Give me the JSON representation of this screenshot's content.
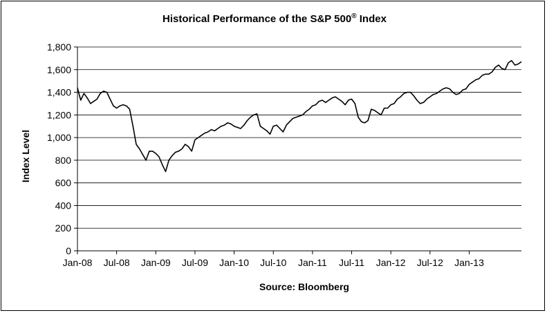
{
  "chart_data": {
    "type": "line",
    "title": "Historical Performance of the S&P 500",
    "title_mark": "®",
    "title_suffix": " Index",
    "xlabel": "Source: Bloomberg",
    "ylabel": "Index Level",
    "ylim": [
      0,
      1800
    ],
    "yticks": [
      0,
      200,
      400,
      600,
      800,
      1000,
      1200,
      1400,
      1600,
      1800
    ],
    "ytick_labels": [
      "0",
      "200",
      "400",
      "600",
      "800",
      "1,000",
      "1,200",
      "1,400",
      "1,600",
      "1,800"
    ],
    "xlim": [
      "2008-01",
      "2013-09"
    ],
    "xtick_labels": [
      "Jan-08",
      "Jul-08",
      "Jan-09",
      "Jul-09",
      "Jan-10",
      "Jul-10",
      "Jan-11",
      "Jul-11",
      "Jan-12",
      "Jul-12",
      "Jan-13"
    ],
    "grid": "horizontal",
    "legend": "none",
    "line_color": "#000000",
    "series": [
      {
        "x": [
          "2008-01",
          "2008-01",
          "2008-02",
          "2008-02",
          "2008-03",
          "2008-03",
          "2008-04",
          "2008-04",
          "2008-05",
          "2008-05",
          "2008-06",
          "2008-06",
          "2008-07",
          "2008-07",
          "2008-08",
          "2008-08",
          "2008-09",
          "2008-09",
          "2008-10",
          "2008-10",
          "2008-11",
          "2008-11",
          "2008-12",
          "2008-12",
          "2009-01",
          "2009-01",
          "2009-02",
          "2009-02",
          "2009-03",
          "2009-03",
          "2009-04",
          "2009-04",
          "2009-05",
          "2009-05",
          "2009-06",
          "2009-06",
          "2009-07",
          "2009-07",
          "2009-08",
          "2009-08",
          "2009-09",
          "2009-09",
          "2009-10",
          "2009-10",
          "2009-11",
          "2009-11",
          "2009-12",
          "2009-12",
          "2010-01",
          "2010-01",
          "2010-02",
          "2010-02",
          "2010-03",
          "2010-03",
          "2010-04",
          "2010-04",
          "2010-05",
          "2010-05",
          "2010-06",
          "2010-06",
          "2010-07",
          "2010-07",
          "2010-08",
          "2010-08",
          "2010-09",
          "2010-09",
          "2010-10",
          "2010-10",
          "2010-11",
          "2010-11",
          "2010-12",
          "2010-12",
          "2011-01",
          "2011-01",
          "2011-02",
          "2011-02",
          "2011-03",
          "2011-03",
          "2011-04",
          "2011-04",
          "2011-05",
          "2011-05",
          "2011-06",
          "2011-06",
          "2011-07",
          "2011-07",
          "2011-08",
          "2011-08",
          "2011-09",
          "2011-09",
          "2011-10",
          "2011-10",
          "2011-11",
          "2011-11",
          "2011-12",
          "2011-12",
          "2012-01",
          "2012-01",
          "2012-02",
          "2012-02",
          "2012-03",
          "2012-03",
          "2012-04",
          "2012-04",
          "2012-05",
          "2012-05",
          "2012-06",
          "2012-06",
          "2012-07",
          "2012-07",
          "2012-08",
          "2012-08",
          "2012-09",
          "2012-09",
          "2012-10",
          "2012-10",
          "2012-11",
          "2012-11",
          "2012-12",
          "2012-12",
          "2013-01",
          "2013-01",
          "2013-02",
          "2013-02",
          "2013-03",
          "2013-03",
          "2013-04",
          "2013-04",
          "2013-05",
          "2013-05",
          "2013-06",
          "2013-06",
          "2013-07",
          "2013-07",
          "2013-08",
          "2013-08",
          "2013-09"
        ],
        "values": [
          1440,
          1330,
          1390,
          1350,
          1300,
          1320,
          1340,
          1390,
          1410,
          1400,
          1340,
          1280,
          1260,
          1280,
          1290,
          1280,
          1250,
          1100,
          940,
          900,
          850,
          800,
          880,
          880,
          860,
          830,
          760,
          700,
          800,
          840,
          870,
          880,
          900,
          940,
          920,
          880,
          980,
          1000,
          1020,
          1040,
          1050,
          1070,
          1060,
          1080,
          1100,
          1110,
          1130,
          1120,
          1100,
          1090,
          1080,
          1110,
          1150,
          1180,
          1200,
          1210,
          1100,
          1080,
          1060,
          1030,
          1100,
          1110,
          1080,
          1050,
          1110,
          1140,
          1170,
          1180,
          1190,
          1200,
          1230,
          1250,
          1280,
          1290,
          1320,
          1330,
          1310,
          1330,
          1350,
          1360,
          1340,
          1320,
          1290,
          1330,
          1340,
          1300,
          1180,
          1140,
          1130,
          1150,
          1250,
          1240,
          1220,
          1200,
          1260,
          1260,
          1290,
          1300,
          1340,
          1360,
          1390,
          1400,
          1400,
          1370,
          1330,
          1300,
          1310,
          1340,
          1360,
          1380,
          1390,
          1410,
          1430,
          1440,
          1430,
          1400,
          1380,
          1390,
          1420,
          1430,
          1470,
          1490,
          1510,
          1520,
          1550,
          1560,
          1560,
          1580,
          1620,
          1640,
          1610,
          1600,
          1660,
          1680,
          1640,
          1650,
          1670
        ]
      }
    ]
  }
}
